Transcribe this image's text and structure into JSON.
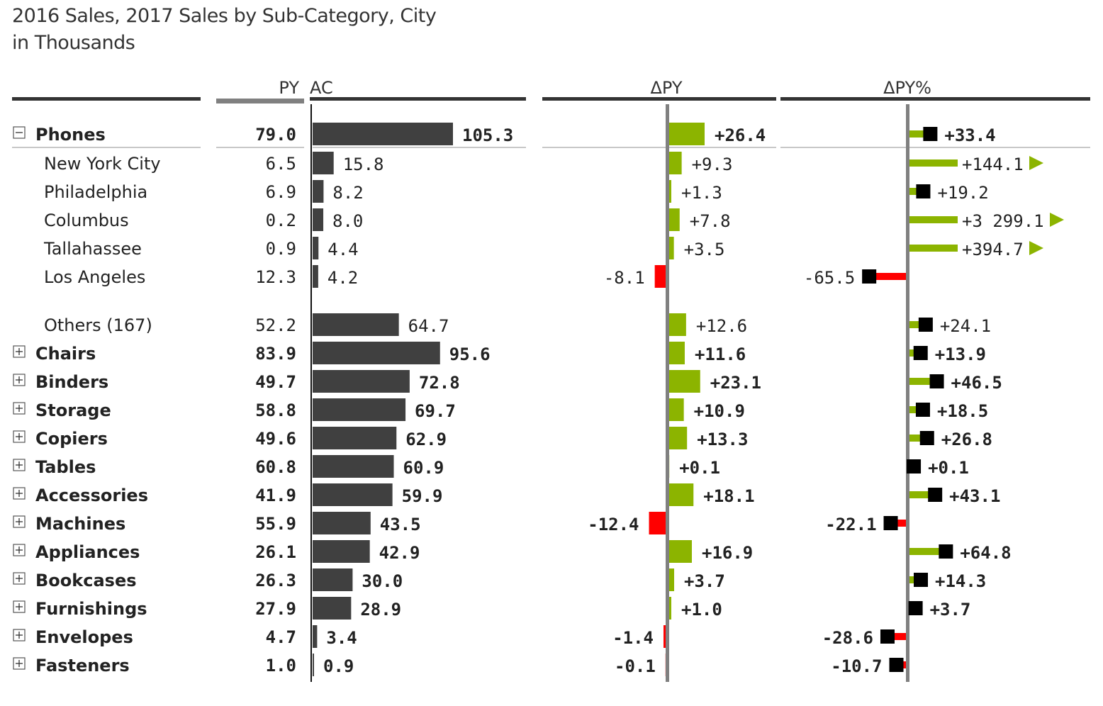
{
  "title": {
    "line1": "2016 Sales, 2017 Sales by Sub-Category, City",
    "line2": "in Thousands"
  },
  "colors": {
    "ac_bar": "#404040",
    "positive": "#8cb400",
    "negative": "#ff0000",
    "marker": "#000000",
    "axis": "#808080",
    "py_header_bar": "#808080"
  },
  "chart_data": {
    "type": "table",
    "title": "2016 Sales, 2017 Sales by Sub-Category, City",
    "subtitle": "in Thousands",
    "columns": {
      "py": "PY",
      "ac": "AC",
      "delta_py": "ΔPY",
      "delta_py_pct": "ΔPY%"
    },
    "rows": [
      {
        "label": "Phones",
        "level": 0,
        "expand": "minus",
        "py": "79.0",
        "ac": "105.3",
        "ac_value": 105.3,
        "dpy": "+26.4",
        "dpy_value": 26.4,
        "dpct": "+33.4",
        "dpct_value": 33.4,
        "bold": true
      },
      {
        "label": "New York City",
        "level": 1,
        "py": "6.5",
        "ac": "15.8",
        "ac_value": 15.8,
        "dpy": "+9.3",
        "dpy_value": 9.3,
        "dpct": "+144.1",
        "dpct_value": 144.1,
        "overflow": true
      },
      {
        "label": "Philadelphia",
        "level": 1,
        "py": "6.9",
        "ac": "8.2",
        "ac_value": 8.2,
        "dpy": "+1.3",
        "dpy_value": 1.3,
        "dpct": "+19.2",
        "dpct_value": 19.2
      },
      {
        "label": "Columbus",
        "level": 1,
        "py": "0.2",
        "ac": "8.0",
        "ac_value": 8.0,
        "dpy": "+7.8",
        "dpy_value": 7.8,
        "dpct": "+3 299.1",
        "dpct_value": 3299.1,
        "overflow": true
      },
      {
        "label": "Tallahassee",
        "level": 1,
        "py": "0.9",
        "ac": "4.4",
        "ac_value": 4.4,
        "dpy": "+3.5",
        "dpy_value": 3.5,
        "dpct": "+394.7",
        "dpct_value": 394.7,
        "overflow": true
      },
      {
        "label": "Los Angeles",
        "level": 1,
        "py": "12.3",
        "ac": "4.2",
        "ac_value": 4.2,
        "dpy": "-8.1",
        "dpy_value": -8.1,
        "dpct": "-65.5",
        "dpct_value": -65.5
      },
      {
        "label": "Others (167)",
        "level": 1,
        "py": "52.2",
        "ac": "64.7",
        "ac_value": 64.7,
        "dpy": "+12.6",
        "dpy_value": 12.6,
        "dpct": "+24.1",
        "dpct_value": 24.1,
        "gap_before": true
      },
      {
        "label": "Chairs",
        "level": 0,
        "expand": "plus",
        "py": "83.9",
        "ac": "95.6",
        "ac_value": 95.6,
        "dpy": "+11.6",
        "dpy_value": 11.6,
        "dpct": "+13.9",
        "dpct_value": 13.9,
        "bold": true
      },
      {
        "label": "Binders",
        "level": 0,
        "expand": "plus",
        "py": "49.7",
        "ac": "72.8",
        "ac_value": 72.8,
        "dpy": "+23.1",
        "dpy_value": 23.1,
        "dpct": "+46.5",
        "dpct_value": 46.5,
        "bold": true
      },
      {
        "label": "Storage",
        "level": 0,
        "expand": "plus",
        "py": "58.8",
        "ac": "69.7",
        "ac_value": 69.7,
        "dpy": "+10.9",
        "dpy_value": 10.9,
        "dpct": "+18.5",
        "dpct_value": 18.5,
        "bold": true
      },
      {
        "label": "Copiers",
        "level": 0,
        "expand": "plus",
        "py": "49.6",
        "ac": "62.9",
        "ac_value": 62.9,
        "dpy": "+13.3",
        "dpy_value": 13.3,
        "dpct": "+26.8",
        "dpct_value": 26.8,
        "bold": true
      },
      {
        "label": "Tables",
        "level": 0,
        "expand": "plus",
        "py": "60.8",
        "ac": "60.9",
        "ac_value": 60.9,
        "dpy": "+0.1",
        "dpy_value": 0.1,
        "dpct": "+0.1",
        "dpct_value": 0.1,
        "bold": true
      },
      {
        "label": "Accessories",
        "level": 0,
        "expand": "plus",
        "py": "41.9",
        "ac": "59.9",
        "ac_value": 59.9,
        "dpy": "+18.1",
        "dpy_value": 18.1,
        "dpct": "+43.1",
        "dpct_value": 43.1,
        "bold": true
      },
      {
        "label": "Machines",
        "level": 0,
        "expand": "plus",
        "py": "55.9",
        "ac": "43.5",
        "ac_value": 43.5,
        "dpy": "-12.4",
        "dpy_value": -12.4,
        "dpct": "-22.1",
        "dpct_value": -22.1,
        "bold": true
      },
      {
        "label": "Appliances",
        "level": 0,
        "expand": "plus",
        "py": "26.1",
        "ac": "42.9",
        "ac_value": 42.9,
        "dpy": "+16.9",
        "dpy_value": 16.9,
        "dpct": "+64.8",
        "dpct_value": 64.8,
        "bold": true
      },
      {
        "label": "Bookcases",
        "level": 0,
        "expand": "plus",
        "py": "26.3",
        "ac": "30.0",
        "ac_value": 30.0,
        "dpy": "+3.7",
        "dpy_value": 3.7,
        "dpct": "+14.3",
        "dpct_value": 14.3,
        "bold": true
      },
      {
        "label": "Furnishings",
        "level": 0,
        "expand": "plus",
        "py": "27.9",
        "ac": "28.9",
        "ac_value": 28.9,
        "dpy": "+1.0",
        "dpy_value": 1.0,
        "dpct": "+3.7",
        "dpct_value": 3.7,
        "bold": true
      },
      {
        "label": "Envelopes",
        "level": 0,
        "expand": "plus",
        "py": "4.7",
        "ac": "3.4",
        "ac_value": 3.4,
        "dpy": "-1.4",
        "dpy_value": -1.4,
        "dpct": "-28.6",
        "dpct_value": -28.6,
        "bold": true
      },
      {
        "label": "Fasteners",
        "level": 0,
        "expand": "plus",
        "py": "1.0",
        "ac": "0.9",
        "ac_value": 0.9,
        "dpy": "-0.1",
        "dpy_value": -0.1,
        "dpct": "-10.7",
        "dpct_value": -10.7,
        "bold": true
      }
    ],
    "pct_axis_cap": 100
  }
}
